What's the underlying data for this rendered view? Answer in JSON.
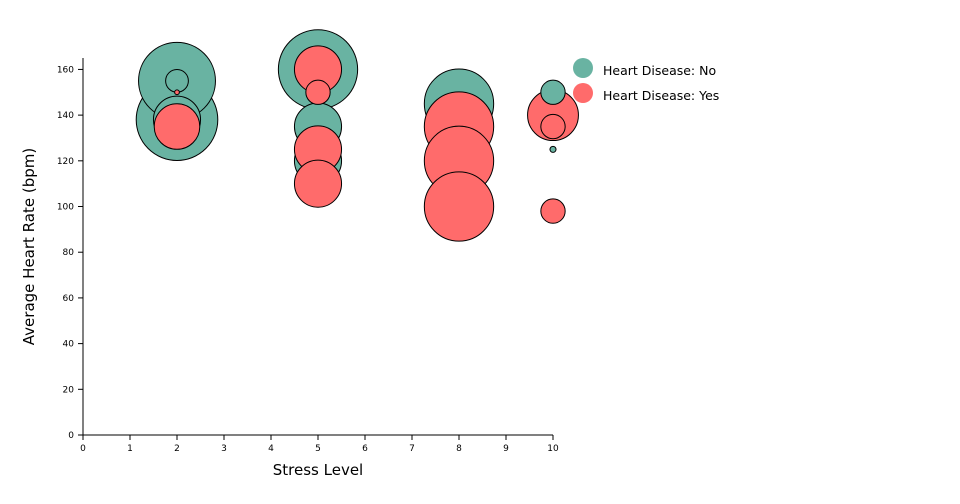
{
  "chart_data": {
    "type": "scatter",
    "variant": "bubble",
    "xlabel": "Stress Level",
    "ylabel": "Average Heart Rate (bpm)",
    "xlim": [
      0,
      10
    ],
    "ylim": [
      0,
      165
    ],
    "x_ticks": [
      0,
      1,
      2,
      3,
      4,
      5,
      6,
      7,
      8,
      9,
      10
    ],
    "y_ticks": [
      0,
      20,
      40,
      60,
      80,
      100,
      120,
      140,
      160
    ],
    "grid": false,
    "legend_position": "top-right",
    "size_encoding": "relative bubble area (estimated)",
    "series": [
      {
        "name": "Heart Disease: No",
        "color": "#69b3a2",
        "points": [
          {
            "x": 2,
            "y": 138,
            "size": 90
          },
          {
            "x": 2,
            "y": 155,
            "size": 80
          },
          {
            "x": 2,
            "y": 138,
            "size": 30
          },
          {
            "x": 2,
            "y": 155,
            "size": 7
          },
          {
            "x": 5,
            "y": 160,
            "size": 85
          },
          {
            "x": 5,
            "y": 135,
            "size": 30
          },
          {
            "x": 5,
            "y": 120,
            "size": 30
          },
          {
            "x": 8,
            "y": 145,
            "size": 65
          },
          {
            "x": 10,
            "y": 150,
            "size": 8
          },
          {
            "x": 10,
            "y": 125,
            "size": 0.5
          }
        ]
      },
      {
        "name": "Heart Disease: Yes",
        "color": "#ff6b6b",
        "points": [
          {
            "x": 2,
            "y": 135,
            "size": 28
          },
          {
            "x": 2,
            "y": 150,
            "size": 0.3
          },
          {
            "x": 5,
            "y": 160,
            "size": 30
          },
          {
            "x": 5,
            "y": 150,
            "size": 8
          },
          {
            "x": 5,
            "y": 125,
            "size": 30
          },
          {
            "x": 5,
            "y": 110,
            "size": 30
          },
          {
            "x": 8,
            "y": 135,
            "size": 65
          },
          {
            "x": 8,
            "y": 120,
            "size": 65
          },
          {
            "x": 8,
            "y": 100,
            "size": 65
          },
          {
            "x": 10,
            "y": 140,
            "size": 35
          },
          {
            "x": 10,
            "y": 135,
            "size": 8
          },
          {
            "x": 10,
            "y": 98,
            "size": 8
          }
        ]
      }
    ]
  }
}
